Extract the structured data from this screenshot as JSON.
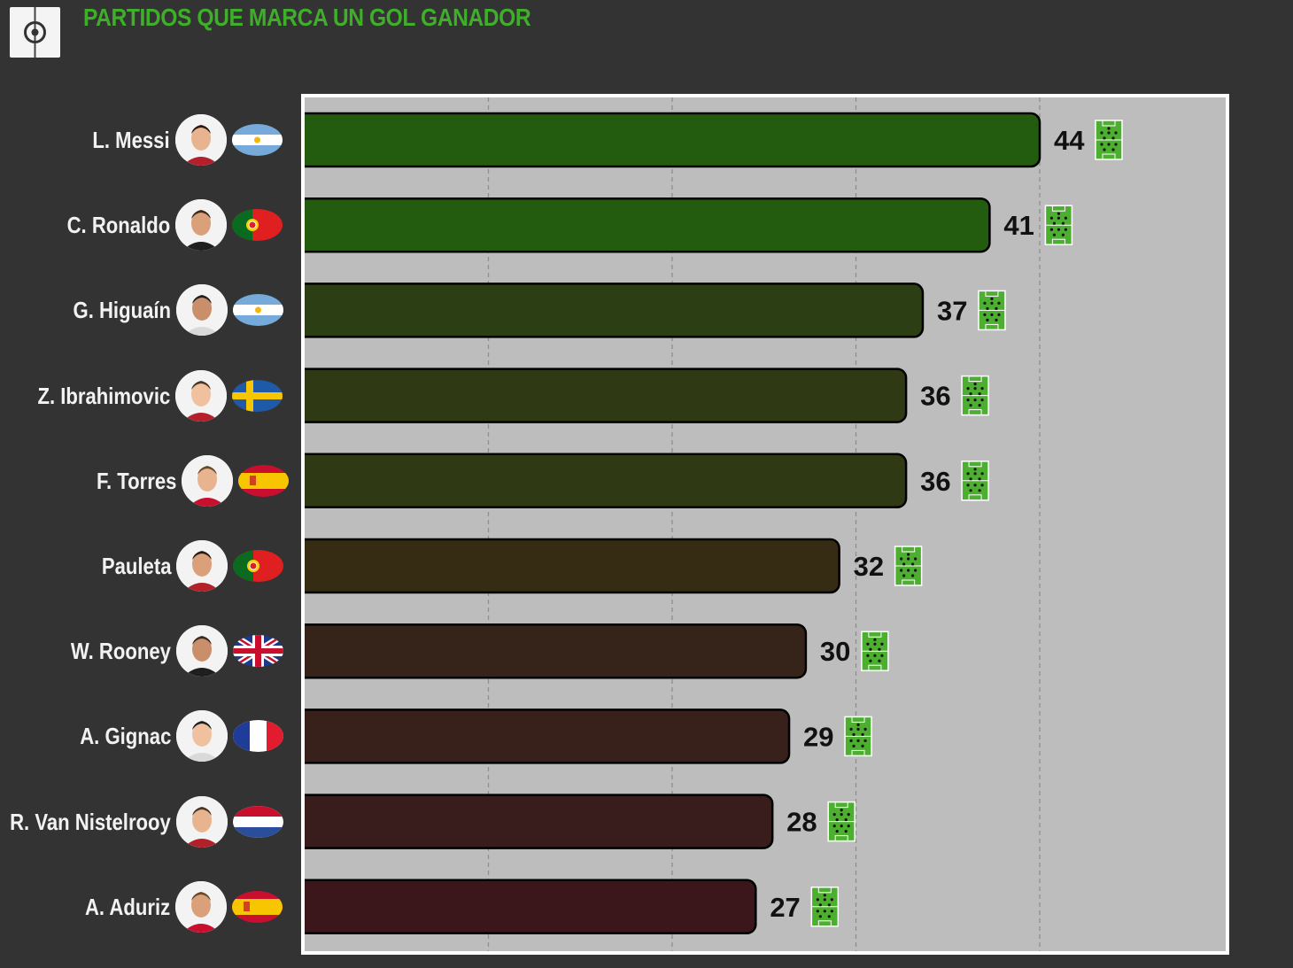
{
  "header": {
    "title": "PARTIDOS QUE MARCA UN GOL GANADOR",
    "logo_icon": "target-icon"
  },
  "colors": {
    "background": "#333333",
    "title": "#3fae2a",
    "plot_background": "#bdbdbd",
    "plot_border": "#ffffff",
    "gridline": "#8f8f8f",
    "value_text": "#111111",
    "label_text": "#f2f2f2",
    "pitch_icon": "#4caf2f"
  },
  "chart_data": {
    "type": "bar",
    "orientation": "horizontal",
    "title": "PARTIDOS QUE MARCA UN GOL GANADOR",
    "xlabel": "",
    "ylabel": "",
    "xlim": [
      0,
      55
    ],
    "grid": "vertical-dashed",
    "gridlines_at": [
      11,
      22,
      33,
      44
    ],
    "categories": [
      "L. Messi",
      "C. Ronaldo",
      "G. Higuaín",
      "Z. Ibrahimovic",
      "F. Torres",
      "Pauleta",
      "W. Rooney",
      "A. Gignac",
      "R. Van Nistelrooy",
      "A. Aduriz"
    ],
    "values": [
      44,
      41,
      37,
      36,
      36,
      32,
      30,
      29,
      28,
      27
    ],
    "bar_colors": [
      "#235c0f",
      "#235c0f",
      "#2c3e14",
      "#2f3914",
      "#2f3914",
      "#362b13",
      "#36231a",
      "#38201b",
      "#391d1c",
      "#3b171b"
    ],
    "flags": [
      "argentina",
      "portugal",
      "argentina",
      "sweden",
      "spain",
      "portugal",
      "united-kingdom",
      "france",
      "netherlands",
      "spain"
    ],
    "value_icon": "football-pitch-icon"
  }
}
